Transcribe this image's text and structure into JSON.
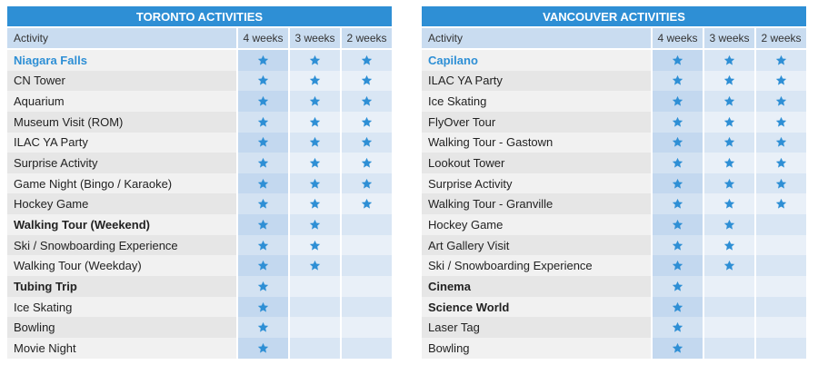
{
  "tables": [
    {
      "title": "TORONTO ACTIVITIES",
      "header": [
        "Activity",
        "4 weeks",
        "3 weeks",
        "2 weeks"
      ],
      "rows": [
        {
          "name": "Niagara Falls",
          "style": "highlight",
          "stars": [
            true,
            true,
            true
          ]
        },
        {
          "name": "CN Tower",
          "stars": [
            true,
            true,
            true
          ]
        },
        {
          "name": "Aquarium",
          "stars": [
            true,
            true,
            true
          ]
        },
        {
          "name": "Museum Visit (ROM)",
          "stars": [
            true,
            true,
            true
          ]
        },
        {
          "name": "ILAC YA Party",
          "stars": [
            true,
            true,
            true
          ]
        },
        {
          "name": "Surprise Activity",
          "stars": [
            true,
            true,
            true
          ]
        },
        {
          "name": "Game Night (Bingo / Karaoke)",
          "stars": [
            true,
            true,
            true
          ]
        },
        {
          "name": "Hockey Game",
          "stars": [
            true,
            true,
            true
          ]
        },
        {
          "name": "Walking Tour (Weekend)",
          "style": "bold",
          "stars": [
            true,
            true,
            false
          ]
        },
        {
          "name": "Ski / Snowboarding Experience",
          "stars": [
            true,
            true,
            false
          ]
        },
        {
          "name": "Walking Tour (Weekday)",
          "stars": [
            true,
            true,
            false
          ]
        },
        {
          "name": "Tubing Trip",
          "style": "bold",
          "stars": [
            true,
            false,
            false
          ]
        },
        {
          "name": "Ice Skating",
          "stars": [
            true,
            false,
            false
          ]
        },
        {
          "name": "Bowling",
          "stars": [
            true,
            false,
            false
          ]
        },
        {
          "name": "Movie Night",
          "stars": [
            true,
            false,
            false
          ]
        }
      ]
    },
    {
      "title": "VANCOUVER ACTIVITIES",
      "header": [
        "Activity",
        "4 weeks",
        "3 weeks",
        "2 weeks"
      ],
      "rows": [
        {
          "name": "Capilano",
          "style": "highlight",
          "stars": [
            true,
            true,
            true
          ]
        },
        {
          "name": "ILAC YA Party",
          "stars": [
            true,
            true,
            true
          ]
        },
        {
          "name": "Ice Skating",
          "stars": [
            true,
            true,
            true
          ]
        },
        {
          "name": "FlyOver Tour",
          "stars": [
            true,
            true,
            true
          ]
        },
        {
          "name": "Walking Tour - Gastown",
          "stars": [
            true,
            true,
            true
          ]
        },
        {
          "name": "Lookout Tower",
          "stars": [
            true,
            true,
            true
          ]
        },
        {
          "name": "Surprise Activity",
          "stars": [
            true,
            true,
            true
          ]
        },
        {
          "name": "Walking Tour - Granville",
          "stars": [
            true,
            true,
            true
          ]
        },
        {
          "name": "Hockey Game",
          "stars": [
            true,
            true,
            false
          ]
        },
        {
          "name": "Art Gallery Visit",
          "stars": [
            true,
            true,
            false
          ]
        },
        {
          "name": "Ski / Snowboarding Experience",
          "stars": [
            true,
            true,
            false
          ]
        },
        {
          "name": "Cinema",
          "style": "bold",
          "stars": [
            true,
            false,
            false
          ]
        },
        {
          "name": "Science World",
          "style": "bold",
          "stars": [
            true,
            false,
            false
          ]
        },
        {
          "name": "Laser Tag",
          "stars": [
            true,
            false,
            false
          ]
        },
        {
          "name": "Bowling",
          "stars": [
            true,
            false,
            false
          ]
        }
      ]
    }
  ]
}
